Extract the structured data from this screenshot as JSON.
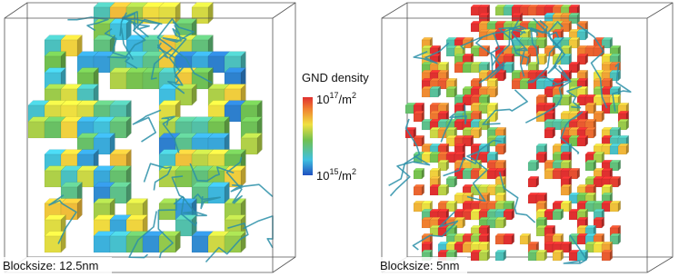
{
  "panels": [
    {
      "caption": "Blocksize: 12.5nm"
    },
    {
      "caption": "Blocksize: 5nm"
    }
  ],
  "colorbar": {
    "title": "GND density",
    "max": {
      "base": "10",
      "exp": "17",
      "unit": "/m",
      "unit_exp": "2"
    },
    "min": {
      "base": "10",
      "exp": "15",
      "unit": "/m",
      "unit_exp": "2"
    }
  }
}
